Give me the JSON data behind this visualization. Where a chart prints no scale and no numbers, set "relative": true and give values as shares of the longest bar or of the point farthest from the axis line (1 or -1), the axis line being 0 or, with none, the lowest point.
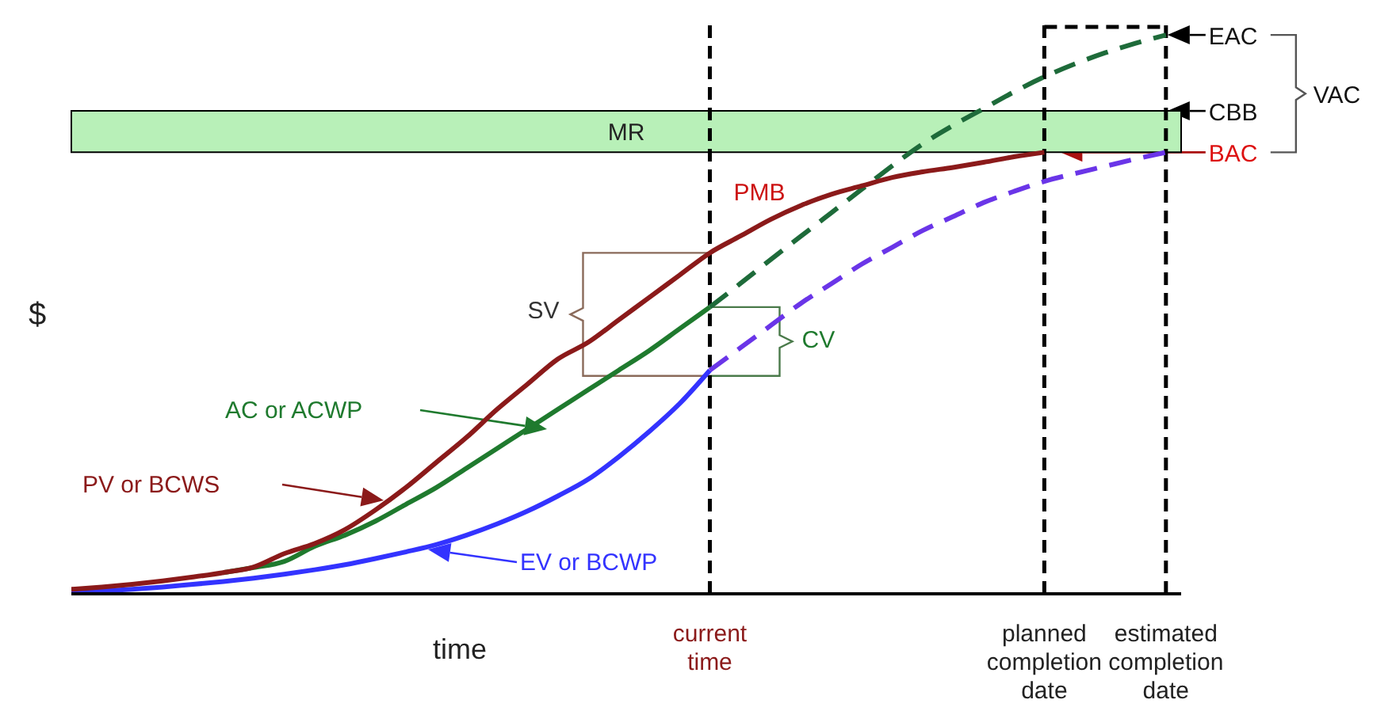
{
  "chart_data": {
    "type": "line",
    "relative": true,
    "xlabel": "time",
    "ylabel": "$",
    "categories": [
      null,
      null,
      null,
      null,
      null,
      null,
      null,
      null,
      null,
      null,
      null,
      null,
      null,
      null,
      null,
      null,
      null,
      null,
      null,
      null,
      null,
      "current time",
      null,
      null,
      null,
      null,
      null,
      null,
      null,
      null,
      null,
      null,
      "planned completion date",
      null,
      null,
      null,
      "estimated completion date"
    ],
    "series": [
      {
        "name": "PV or BCWS",
        "color": "#8b1a1a",
        "line_style": "solid",
        "values": [
          0.008,
          0.012,
          0.017,
          0.023,
          0.03,
          0.038,
          0.048,
          0.072,
          0.09,
          0.115,
          0.15,
          0.19,
          0.235,
          0.28,
          0.33,
          0.375,
          0.42,
          0.45,
          0.49,
          0.53,
          0.57,
          0.61,
          0.64,
          0.67,
          0.695,
          0.715,
          0.73,
          0.745,
          0.755,
          0.763,
          0.772,
          0.782,
          0.79,
          null,
          null,
          null,
          null
        ]
      },
      {
        "name": "AC or ACWP",
        "color": "#1f7a2e",
        "line_style": "solid",
        "values": [
          null,
          null,
          null,
          null,
          null,
          0.038,
          0.047,
          0.058,
          0.085,
          0.105,
          0.13,
          0.16,
          0.19,
          0.225,
          0.26,
          0.295,
          0.33,
          0.365,
          0.4,
          0.435,
          0.474,
          0.513,
          null,
          null,
          null,
          null,
          null,
          null,
          null,
          null,
          null,
          null,
          null,
          null,
          null,
          null,
          null
        ]
      },
      {
        "color": "#1e6b3a",
        "line_style": "dashed",
        "values": [
          null,
          null,
          null,
          null,
          null,
          null,
          null,
          null,
          null,
          null,
          null,
          null,
          null,
          null,
          null,
          null,
          null,
          null,
          null,
          null,
          null,
          0.513,
          0.555,
          0.598,
          0.64,
          0.682,
          0.724,
          0.766,
          0.805,
          0.838,
          0.868,
          0.898,
          0.925,
          0.948,
          0.968,
          0.985,
          1.0
        ]
      },
      {
        "name": "EV or BCWP",
        "color": "#3333ff",
        "line_style": "solid",
        "values": [
          0.003,
          0.005,
          0.008,
          0.012,
          0.017,
          0.022,
          0.028,
          0.035,
          0.043,
          0.052,
          0.063,
          0.075,
          0.088,
          0.105,
          0.125,
          0.148,
          0.175,
          0.205,
          0.245,
          0.29,
          0.34,
          0.4,
          null,
          null,
          null,
          null,
          null,
          null,
          null,
          null,
          null,
          null,
          null,
          null,
          null,
          null,
          null
        ]
      },
      {
        "color": "#6a35e8",
        "line_style": "dashed",
        "values": [
          null,
          null,
          null,
          null,
          null,
          null,
          null,
          null,
          null,
          null,
          null,
          null,
          null,
          null,
          null,
          null,
          null,
          null,
          null,
          null,
          null,
          0.4,
          0.44,
          0.48,
          0.52,
          0.555,
          0.59,
          0.62,
          0.65,
          0.675,
          0.7,
          0.72,
          0.738,
          0.752,
          0.765,
          0.778,
          0.79
        ]
      }
    ],
    "bands": [
      {
        "axis": "y",
        "from": 0.79,
        "to": 0.864,
        "label": "MR",
        "color": "#b8f0b8"
      }
    ],
    "ref_lines": [
      {
        "axis": "x",
        "value": "current time",
        "color": "#000000",
        "line_style": "dashed"
      },
      {
        "axis": "x",
        "value": "planned completion date",
        "color": "#000000",
        "line_style": "dashed"
      },
      {
        "axis": "x",
        "value": "estimated completion date",
        "color": "#000000",
        "line_style": "dashed"
      }
    ],
    "annotations": [
      {
        "text": "PMB",
        "x": "current time",
        "y": 0.61
      },
      "SV",
      "CV",
      {
        "text": "EAC",
        "x": "estimated completion date",
        "y": 1.0
      },
      {
        "text": "CBB",
        "x": "estimated completion date",
        "y": 0.864
      },
      {
        "text": "BAC",
        "x": "estimated completion date",
        "y": 0.79
      },
      "VAC"
    ],
    "grid": false,
    "marker": "none"
  }
}
